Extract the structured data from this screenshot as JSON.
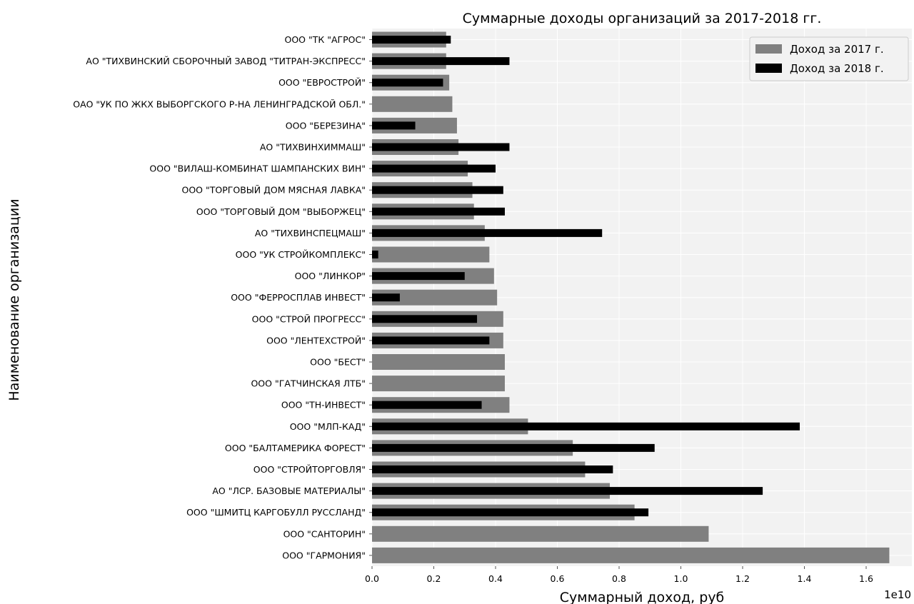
{
  "chart_data": {
    "type": "bar",
    "orientation": "horizontal",
    "title": "Суммарные доходы организаций за 2017-2018 гг.",
    "xlabel": "Суммарный доход, руб",
    "ylabel": "Наименование организации",
    "x_offset_text": "1e10",
    "xlim": [
      0,
      1.75
    ],
    "xticks": [
      "0.0",
      "0.2",
      "0.4",
      "0.6",
      "0.8",
      "1.0",
      "1.2",
      "1.4",
      "1.6"
    ],
    "grid": true,
    "legend_position": "top-right",
    "categories": [
      "ООО \"ТК \"АГРОС\"",
      "АО \"ТИХВИНСКИЙ СБОРОЧНЫЙ ЗАВОД \"ТИТРАН-ЭКСПРЕСС\"",
      "ООО \"ЕВРОСТРОЙ\"",
      "ОАО \"УК ПО ЖКХ ВЫБОРГСКОГО Р-НА ЛЕНИНГРАДСКОЙ ОБЛ.\"",
      "ООО \"БЕРЕЗИНА\"",
      "АО \"ТИХВИНХИММАШ\"",
      "ООО \"ВИЛАШ-КОМБИНАТ ШАМПАНСКИХ ВИН\"",
      "ООО \"ТОРГОВЫЙ ДОМ МЯСНАЯ ЛАВКА\"",
      "ООО \"ТОРГОВЫЙ ДОМ \"ВЫБОРЖЕЦ\"",
      "АО \"ТИХВИНСПЕЦМАШ\"",
      "ООО \"УК СТРОЙКОМПЛЕКС\"",
      "ООО \"ЛИНКОР\"",
      "ООО \"ФЕРРОСПЛАВ ИНВЕСТ\"",
      "ООО \"СТРОЙ ПРОГРЕСС\"",
      "ООО \"ЛЕНТЕХСТРОЙ\"",
      "ООО \"БЕСТ\"",
      "ООО \"ГАТЧИНСКАЯ ЛТБ\"",
      "ООО \"ТН-ИНВЕСТ\"",
      "ООО \"МЛП-КАД\"",
      "ООО \"БАЛТАМЕРИКА ФОРЕСТ\"",
      "ООО \"СТРОЙТОРГОВЛЯ\"",
      "АО \"ЛСР. БАЗОВЫЕ МАТЕРИАЛЫ\"",
      "ООО \"ШМИТЦ КАРГОБУЛЛ РУССЛАНД\"",
      "ООО \"САНТОРИН\"",
      "ООО \"ГАРМОНИЯ\""
    ],
    "series": [
      {
        "name": "Доход за 2017 г.",
        "color": "#808080",
        "values": [
          0.24,
          0.24,
          0.25,
          0.26,
          0.275,
          0.28,
          0.31,
          0.325,
          0.33,
          0.365,
          0.38,
          0.395,
          0.405,
          0.425,
          0.425,
          0.43,
          0.43,
          0.445,
          0.505,
          0.65,
          0.69,
          0.77,
          0.85,
          1.09,
          1.675
        ]
      },
      {
        "name": "Доход за 2018 г.",
        "color": "#000000",
        "values": [
          0.255,
          0.445,
          0.23,
          0,
          0.14,
          0.445,
          0.4,
          0.425,
          0.43,
          0.745,
          0.02,
          0.3,
          0.09,
          0.34,
          0.38,
          0,
          0,
          0.355,
          1.385,
          0.915,
          0.78,
          1.265,
          0.895,
          0,
          0
        ]
      }
    ]
  }
}
